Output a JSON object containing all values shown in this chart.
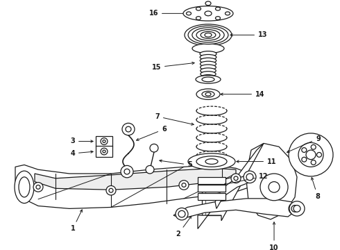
{
  "bg_color": "#ffffff",
  "fig_width": 4.9,
  "fig_height": 3.6,
  "dpi": 100,
  "line_color": "#1a1a1a",
  "label_fontsize": 7.0
}
